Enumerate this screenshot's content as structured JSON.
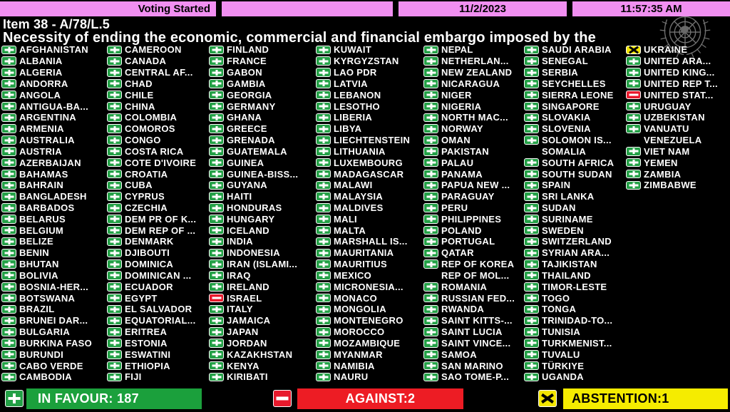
{
  "header": {
    "status": "Voting Started",
    "date": "11/2/2023",
    "time": "11:57:35 AM"
  },
  "title": {
    "line1": "Item 38 - A/78/L.5",
    "line2": "Necessity of ending the economic, commercial and financial embargo imposed by the"
  },
  "icons": {
    "in_favour": "green-plus-icon",
    "against": "red-minus-icon",
    "abstention": "yellow-x-icon",
    "watermark": "un-emblem-icon"
  },
  "colors": {
    "status_bar": "#F18FF1",
    "in_favour": "#23A046",
    "against": "#E8192C",
    "abstention": "#F2E500",
    "background": "#000000",
    "text": "#FFFFFF"
  },
  "summary": {
    "in_favour_label": "IN FAVOUR: 187",
    "against_label": "AGAINST:2",
    "abstention_label": "ABSTENTION:1",
    "in_favour_count": 187,
    "against_count": 2,
    "abstention_count": 1
  },
  "votes": {
    "legend_meaning": {
      "Y": "in favour",
      "N": "against",
      "A": "abstention",
      "X": "no vote shown"
    },
    "columns": [
      [
        {
          "n": "AFGHANISTAN",
          "v": "Y"
        },
        {
          "n": "ALBANIA",
          "v": "Y"
        },
        {
          "n": "ALGERIA",
          "v": "Y"
        },
        {
          "n": "ANDORRA",
          "v": "Y"
        },
        {
          "n": "ANGOLA",
          "v": "Y"
        },
        {
          "n": "ANTIGUA-BA...",
          "v": "Y"
        },
        {
          "n": "ARGENTINA",
          "v": "Y"
        },
        {
          "n": "ARMENIA",
          "v": "Y"
        },
        {
          "n": "AUSTRALIA",
          "v": "Y"
        },
        {
          "n": "AUSTRIA",
          "v": "Y"
        },
        {
          "n": "AZERBAIJAN",
          "v": "Y"
        },
        {
          "n": "BAHAMAS",
          "v": "Y"
        },
        {
          "n": "BAHRAIN",
          "v": "Y"
        },
        {
          "n": "BANGLADESH",
          "v": "Y"
        },
        {
          "n": "BARBADOS",
          "v": "Y"
        },
        {
          "n": "BELARUS",
          "v": "Y"
        },
        {
          "n": "BELGIUM",
          "v": "Y"
        },
        {
          "n": "BELIZE",
          "v": "Y"
        },
        {
          "n": "BENIN",
          "v": "Y"
        },
        {
          "n": "BHUTAN",
          "v": "Y"
        },
        {
          "n": "BOLIVIA",
          "v": "Y"
        },
        {
          "n": "BOSNIA-HER...",
          "v": "Y"
        },
        {
          "n": "BOTSWANA",
          "v": "Y"
        },
        {
          "n": "BRAZIL",
          "v": "Y"
        },
        {
          "n": "BRUNEI DAR...",
          "v": "Y"
        },
        {
          "n": "BULGARIA",
          "v": "Y"
        },
        {
          "n": "BURKINA FASO",
          "v": "Y"
        },
        {
          "n": "BURUNDI",
          "v": "Y"
        },
        {
          "n": "CABO VERDE",
          "v": "Y"
        },
        {
          "n": "CAMBODIA",
          "v": "Y"
        }
      ],
      [
        {
          "n": "CAMEROON",
          "v": "Y"
        },
        {
          "n": "CANADA",
          "v": "Y"
        },
        {
          "n": "CENTRAL AF...",
          "v": "Y"
        },
        {
          "n": "CHAD",
          "v": "Y"
        },
        {
          "n": "CHILE",
          "v": "Y"
        },
        {
          "n": "CHINA",
          "v": "Y"
        },
        {
          "n": "COLOMBIA",
          "v": "Y"
        },
        {
          "n": "COMOROS",
          "v": "Y"
        },
        {
          "n": "CONGO",
          "v": "Y"
        },
        {
          "n": "COSTA RICA",
          "v": "Y"
        },
        {
          "n": "COTE D'IVOIRE",
          "v": "Y"
        },
        {
          "n": "CROATIA",
          "v": "Y"
        },
        {
          "n": "CUBA",
          "v": "Y"
        },
        {
          "n": "CYPRUS",
          "v": "Y"
        },
        {
          "n": "CZECHIA",
          "v": "Y"
        },
        {
          "n": "DEM PR OF K...",
          "v": "Y"
        },
        {
          "n": "DEM REP OF ...",
          "v": "Y"
        },
        {
          "n": "DENMARK",
          "v": "Y"
        },
        {
          "n": "DJIBOUTI",
          "v": "Y"
        },
        {
          "n": "DOMINICA",
          "v": "Y"
        },
        {
          "n": "DOMINICAN ...",
          "v": "Y"
        },
        {
          "n": "ECUADOR",
          "v": "Y"
        },
        {
          "n": "EGYPT",
          "v": "Y"
        },
        {
          "n": "EL SALVADOR",
          "v": "Y"
        },
        {
          "n": "EQUATORIAL...",
          "v": "Y"
        },
        {
          "n": "ERITREA",
          "v": "Y"
        },
        {
          "n": "ESTONIA",
          "v": "Y"
        },
        {
          "n": "ESWATINI",
          "v": "Y"
        },
        {
          "n": "ETHIOPIA",
          "v": "Y"
        },
        {
          "n": "FIJI",
          "v": "Y"
        }
      ],
      [
        {
          "n": "FINLAND",
          "v": "Y"
        },
        {
          "n": "FRANCE",
          "v": "Y"
        },
        {
          "n": "GABON",
          "v": "Y"
        },
        {
          "n": "GAMBIA",
          "v": "Y"
        },
        {
          "n": "GEORGIA",
          "v": "Y"
        },
        {
          "n": "GERMANY",
          "v": "Y"
        },
        {
          "n": "GHANA",
          "v": "Y"
        },
        {
          "n": "GREECE",
          "v": "Y"
        },
        {
          "n": "GRENADA",
          "v": "Y"
        },
        {
          "n": "GUATEMALA",
          "v": "Y"
        },
        {
          "n": "GUINEA",
          "v": "Y"
        },
        {
          "n": "GUINEA-BISS...",
          "v": "Y"
        },
        {
          "n": "GUYANA",
          "v": "Y"
        },
        {
          "n": "HAITI",
          "v": "Y"
        },
        {
          "n": "HONDURAS",
          "v": "Y"
        },
        {
          "n": "HUNGARY",
          "v": "Y"
        },
        {
          "n": "ICELAND",
          "v": "Y"
        },
        {
          "n": "INDIA",
          "v": "Y"
        },
        {
          "n": "INDONESIA",
          "v": "Y"
        },
        {
          "n": "IRAN (ISLAMI...",
          "v": "Y"
        },
        {
          "n": "IRAQ",
          "v": "Y"
        },
        {
          "n": "IRELAND",
          "v": "Y"
        },
        {
          "n": "ISRAEL",
          "v": "N"
        },
        {
          "n": "ITALY",
          "v": "Y"
        },
        {
          "n": "JAMAICA",
          "v": "Y"
        },
        {
          "n": "JAPAN",
          "v": "Y"
        },
        {
          "n": "JORDAN",
          "v": "Y"
        },
        {
          "n": "KAZAKHSTAN",
          "v": "Y"
        },
        {
          "n": "KENYA",
          "v": "Y"
        },
        {
          "n": "KIRIBATI",
          "v": "Y"
        }
      ],
      [
        {
          "n": "KUWAIT",
          "v": "Y"
        },
        {
          "n": "KYRGYZSTAN",
          "v": "Y"
        },
        {
          "n": "LAO PDR",
          "v": "Y"
        },
        {
          "n": "LATVIA",
          "v": "Y"
        },
        {
          "n": "LEBANON",
          "v": "Y"
        },
        {
          "n": "LESOTHO",
          "v": "Y"
        },
        {
          "n": "LIBERIA",
          "v": "Y"
        },
        {
          "n": "LIBYA",
          "v": "Y"
        },
        {
          "n": "LIECHTENSTEIN",
          "v": "Y"
        },
        {
          "n": "LITHUANIA",
          "v": "Y"
        },
        {
          "n": "LUXEMBOURG",
          "v": "Y"
        },
        {
          "n": "MADAGASCAR",
          "v": "Y"
        },
        {
          "n": "MALAWI",
          "v": "Y"
        },
        {
          "n": "MALAYSIA",
          "v": "Y"
        },
        {
          "n": "MALDIVES",
          "v": "Y"
        },
        {
          "n": "MALI",
          "v": "Y"
        },
        {
          "n": "MALTA",
          "v": "Y"
        },
        {
          "n": "MARSHALL IS...",
          "v": "Y"
        },
        {
          "n": "MAURITANIA",
          "v": "Y"
        },
        {
          "n": "MAURITIUS",
          "v": "Y"
        },
        {
          "n": "MEXICO",
          "v": "Y"
        },
        {
          "n": "MICRONESIA...",
          "v": "Y"
        },
        {
          "n": "MONACO",
          "v": "Y"
        },
        {
          "n": "MONGOLIA",
          "v": "Y"
        },
        {
          "n": "MONTENEGRO",
          "v": "Y"
        },
        {
          "n": "MOROCCO",
          "v": "Y"
        },
        {
          "n": "MOZAMBIQUE",
          "v": "Y"
        },
        {
          "n": "MYANMAR",
          "v": "Y"
        },
        {
          "n": "NAMIBIA",
          "v": "Y"
        },
        {
          "n": "NAURU",
          "v": "Y"
        }
      ],
      [
        {
          "n": "NEPAL",
          "v": "Y"
        },
        {
          "n": "NETHERLAN...",
          "v": "Y"
        },
        {
          "n": "NEW ZEALAND",
          "v": "Y"
        },
        {
          "n": "NICARAGUA",
          "v": "Y"
        },
        {
          "n": "NIGER",
          "v": "Y"
        },
        {
          "n": "NIGERIA",
          "v": "Y"
        },
        {
          "n": "NORTH MAC...",
          "v": "Y"
        },
        {
          "n": "NORWAY",
          "v": "Y"
        },
        {
          "n": "OMAN",
          "v": "Y"
        },
        {
          "n": "PAKISTAN",
          "v": "Y"
        },
        {
          "n": "PALAU",
          "v": "Y"
        },
        {
          "n": "PANAMA",
          "v": "Y"
        },
        {
          "n": "PAPUA NEW ...",
          "v": "Y"
        },
        {
          "n": "PARAGUAY",
          "v": "Y"
        },
        {
          "n": "PERU",
          "v": "Y"
        },
        {
          "n": "PHILIPPINES",
          "v": "Y"
        },
        {
          "n": "POLAND",
          "v": "Y"
        },
        {
          "n": "PORTUGAL",
          "v": "Y"
        },
        {
          "n": "QATAR",
          "v": "Y"
        },
        {
          "n": "REP OF KOREA",
          "v": "Y"
        },
        {
          "n": "REP OF MOL...",
          "v": "X"
        },
        {
          "n": "ROMANIA",
          "v": "Y"
        },
        {
          "n": "RUSSIAN FED...",
          "v": "Y"
        },
        {
          "n": "RWANDA",
          "v": "Y"
        },
        {
          "n": "SAINT KITTS-...",
          "v": "Y"
        },
        {
          "n": "SAINT LUCIA",
          "v": "Y"
        },
        {
          "n": "SAINT VINCE...",
          "v": "Y"
        },
        {
          "n": "SAMOA",
          "v": "Y"
        },
        {
          "n": "SAN MARINO",
          "v": "Y"
        },
        {
          "n": "SAO TOME-P...",
          "v": "Y"
        }
      ],
      [
        {
          "n": "SAUDI ARABIA",
          "v": "Y"
        },
        {
          "n": "SENEGAL",
          "v": "Y"
        },
        {
          "n": "SERBIA",
          "v": "Y"
        },
        {
          "n": "SEYCHELLES",
          "v": "Y"
        },
        {
          "n": "SIERRA LEONE",
          "v": "Y"
        },
        {
          "n": "SINGAPORE",
          "v": "Y"
        },
        {
          "n": "SLOVAKIA",
          "v": "Y"
        },
        {
          "n": "SLOVENIA",
          "v": "Y"
        },
        {
          "n": "SOLOMON IS...",
          "v": "Y"
        },
        {
          "n": "SOMALIA",
          "v": "X"
        },
        {
          "n": "SOUTH AFRICA",
          "v": "Y"
        },
        {
          "n": "SOUTH SUDAN",
          "v": "Y"
        },
        {
          "n": "SPAIN",
          "v": "Y"
        },
        {
          "n": "SRI LANKA",
          "v": "Y"
        },
        {
          "n": "SUDAN",
          "v": "Y"
        },
        {
          "n": "SURINAME",
          "v": "Y"
        },
        {
          "n": "SWEDEN",
          "v": "Y"
        },
        {
          "n": "SWITZERLAND",
          "v": "Y"
        },
        {
          "n": "SYRIAN ARA...",
          "v": "Y"
        },
        {
          "n": "TAJIKISTAN",
          "v": "Y"
        },
        {
          "n": "THAILAND",
          "v": "Y"
        },
        {
          "n": "TIMOR-LESTE",
          "v": "Y"
        },
        {
          "n": "TOGO",
          "v": "Y"
        },
        {
          "n": "TONGA",
          "v": "Y"
        },
        {
          "n": "TRINIDAD-TO...",
          "v": "Y"
        },
        {
          "n": "TUNISIA",
          "v": "Y"
        },
        {
          "n": "TURKMENIST...",
          "v": "Y"
        },
        {
          "n": "TUVALU",
          "v": "Y"
        },
        {
          "n": "TÜRKIYE",
          "v": "Y"
        },
        {
          "n": "UGANDA",
          "v": "Y"
        }
      ],
      [
        {
          "n": "UKRAINE",
          "v": "A"
        },
        {
          "n": "UNITED ARA...",
          "v": "Y"
        },
        {
          "n": "UNITED KING...",
          "v": "Y"
        },
        {
          "n": "UNITED REP T...",
          "v": "Y"
        },
        {
          "n": "UNITED STAT...",
          "v": "N"
        },
        {
          "n": "URUGUAY",
          "v": "Y"
        },
        {
          "n": "UZBEKISTAN",
          "v": "Y"
        },
        {
          "n": "VANUATU",
          "v": "Y"
        },
        {
          "n": "VENEZUELA",
          "v": "X"
        },
        {
          "n": "VIET NAM",
          "v": "Y"
        },
        {
          "n": "YEMEN",
          "v": "Y"
        },
        {
          "n": "ZAMBIA",
          "v": "Y"
        },
        {
          "n": "ZIMBABWE",
          "v": "Y"
        }
      ]
    ]
  }
}
